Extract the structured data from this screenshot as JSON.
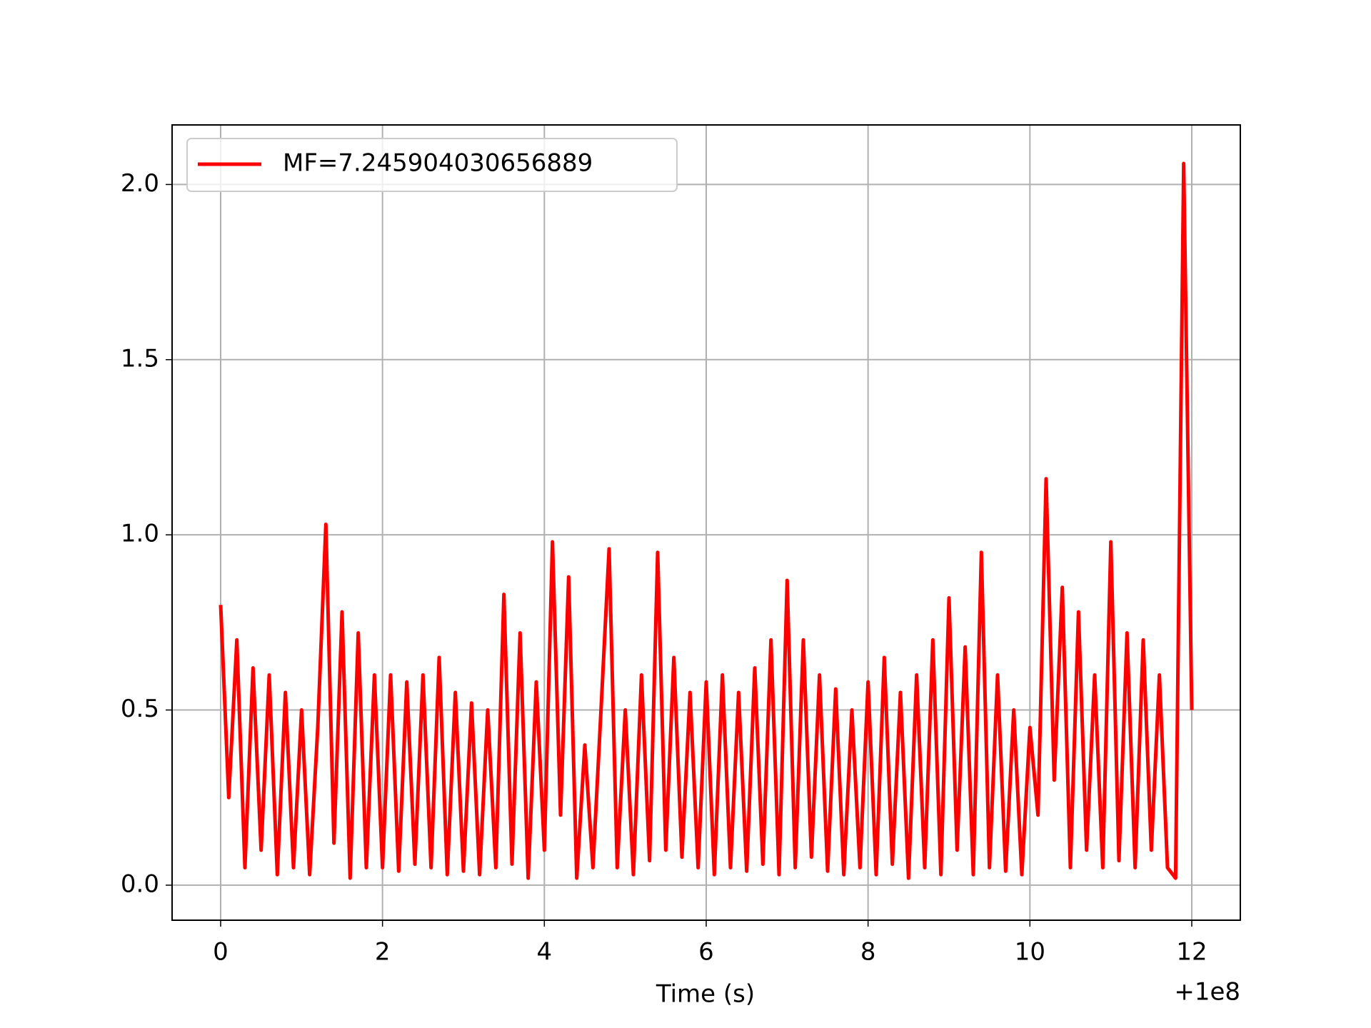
{
  "chart_data": {
    "type": "line",
    "xlabel": "Time (s)",
    "x_offset_label": "+1e8",
    "x": [
      0,
      0.1,
      0.2,
      0.3,
      0.4,
      0.5,
      0.6,
      0.7,
      0.8,
      0.9,
      1,
      1.1,
      1.2,
      1.3,
      1.4,
      1.5,
      1.6,
      1.7,
      1.8,
      1.9,
      2,
      2.1,
      2.2,
      2.3,
      2.4,
      2.5,
      2.6,
      2.7,
      2.8,
      2.9,
      3,
      3.1,
      3.2,
      3.3,
      3.4,
      3.5,
      3.6,
      3.7,
      3.8,
      3.9,
      4,
      4.1,
      4.2,
      4.3,
      4.4,
      4.5,
      4.6,
      4.7,
      4.8,
      4.9,
      5,
      5.1,
      5.2,
      5.3,
      5.4,
      5.5,
      5.6,
      5.7,
      5.8,
      5.9,
      6,
      6.1,
      6.2,
      6.3,
      6.4,
      6.5,
      6.6,
      6.7,
      6.8,
      6.9,
      7,
      7.1,
      7.2,
      7.3,
      7.4,
      7.5,
      7.6,
      7.7,
      7.8,
      7.9,
      8,
      8.1,
      8.2,
      8.3,
      8.4,
      8.5,
      8.6,
      8.7,
      8.8,
      8.9,
      9,
      9.1,
      9.2,
      9.3,
      9.4,
      9.5,
      9.6,
      9.7,
      9.8,
      9.9,
      10,
      10.1,
      10.2,
      10.3,
      10.4,
      10.5,
      10.6,
      10.7,
      10.8,
      10.9,
      11,
      11.1,
      11.2,
      11.3,
      11.4,
      11.5,
      11.6,
      11.7,
      11.8,
      11.9,
      12
    ],
    "series": [
      {
        "name": "MF=7.245904030656889",
        "color": "#ff0000",
        "values": [
          0.8,
          0.25,
          0.7,
          0.05,
          0.62,
          0.1,
          0.6,
          0.03,
          0.55,
          0.05,
          0.5,
          0.03,
          0.45,
          1.03,
          0.12,
          0.78,
          0.02,
          0.72,
          0.05,
          0.6,
          0.05,
          0.6,
          0.04,
          0.58,
          0.06,
          0.6,
          0.05,
          0.65,
          0.03,
          0.55,
          0.04,
          0.52,
          0.03,
          0.5,
          0.05,
          0.83,
          0.06,
          0.72,
          0.02,
          0.58,
          0.1,
          0.98,
          0.2,
          0.88,
          0.02,
          0.4,
          0.05,
          0.5,
          0.96,
          0.05,
          0.5,
          0.03,
          0.6,
          0.07,
          0.95,
          0.1,
          0.65,
          0.08,
          0.55,
          0.05,
          0.58,
          0.03,
          0.6,
          0.05,
          0.55,
          0.04,
          0.62,
          0.06,
          0.7,
          0.03,
          0.87,
          0.05,
          0.7,
          0.08,
          0.6,
          0.04,
          0.56,
          0.03,
          0.5,
          0.05,
          0.58,
          0.03,
          0.65,
          0.06,
          0.55,
          0.02,
          0.6,
          0.05,
          0.7,
          0.03,
          0.82,
          0.1,
          0.68,
          0.03,
          0.95,
          0.05,
          0.6,
          0.04,
          0.5,
          0.03,
          0.45,
          0.2,
          1.16,
          0.3,
          0.85,
          0.05,
          0.78,
          0.1,
          0.6,
          0.05,
          0.98,
          0.07,
          0.72,
          0.05,
          0.7,
          0.1,
          0.6,
          0.05,
          0.02,
          2.06,
          0.5
        ]
      }
    ],
    "xlim": [
      -0.6,
      12.6
    ],
    "ylim": [
      -0.1,
      2.17
    ],
    "xticks": [
      0,
      2,
      4,
      6,
      8,
      10,
      12
    ],
    "yticks": [
      {
        "value": 0,
        "label": "0.0"
      },
      0.5,
      {
        "value": 1,
        "label": "1.0"
      },
      1.5,
      {
        "value": 2,
        "label": "2.0"
      }
    ],
    "grid": true,
    "legend": "upper left"
  }
}
